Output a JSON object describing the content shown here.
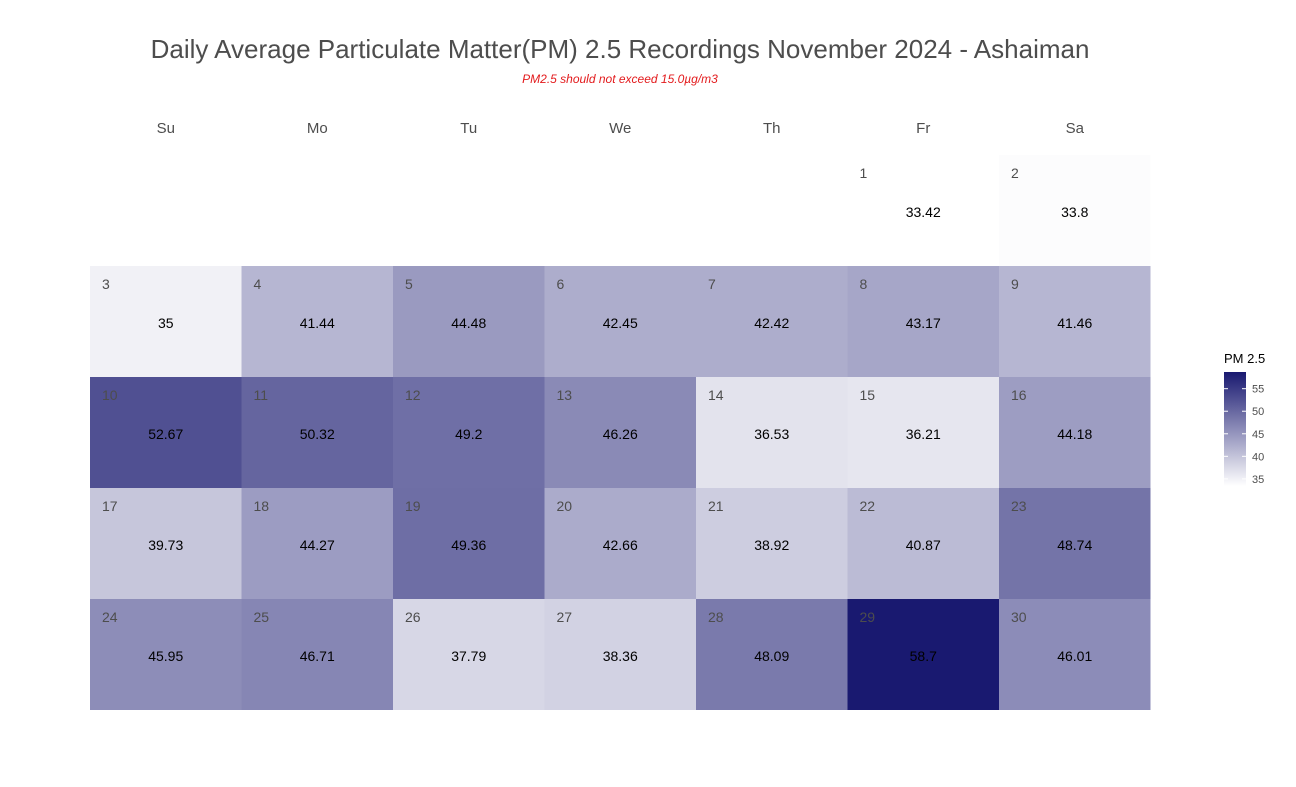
{
  "chart_data": {
    "type": "heatmap",
    "title": "Daily Average Particulate Matter(PM) 2.5 Recordings November 2024 -  Ashaiman",
    "subtitle": "PM2.5 should not exceed 15.0µg/m3",
    "weekdays": [
      "Su",
      "Mo",
      "Tu",
      "We",
      "Th",
      "Fr",
      "Sa"
    ],
    "first_weekday_index": 5,
    "days": [
      1,
      2,
      3,
      4,
      5,
      6,
      7,
      8,
      9,
      10,
      11,
      12,
      13,
      14,
      15,
      16,
      17,
      18,
      19,
      20,
      21,
      22,
      23,
      24,
      25,
      26,
      27,
      28,
      29,
      30
    ],
    "values": [
      33.42,
      33.8,
      35,
      41.44,
      44.48,
      42.45,
      42.42,
      43.17,
      41.46,
      52.67,
      50.32,
      49.2,
      46.26,
      36.53,
      36.21,
      44.18,
      39.73,
      44.27,
      49.36,
      42.66,
      38.92,
      40.87,
      48.74,
      45.95,
      46.71,
      37.79,
      38.36,
      48.09,
      58.7,
      46.01
    ],
    "legend": {
      "title": "PM 2.5",
      "ticks": [
        35,
        40,
        45,
        50,
        55
      ],
      "tick_labels": [
        "35",
        "40",
        "45",
        "50",
        "55"
      ],
      "range": [
        33.42,
        58.7
      ]
    },
    "colors": {
      "low": "#ffffff",
      "high": "#191970",
      "title": "#4d4d4d",
      "subtitle": "#e31a1c",
      "day_number": "#4d4d4d",
      "value_text": "#000000"
    }
  }
}
